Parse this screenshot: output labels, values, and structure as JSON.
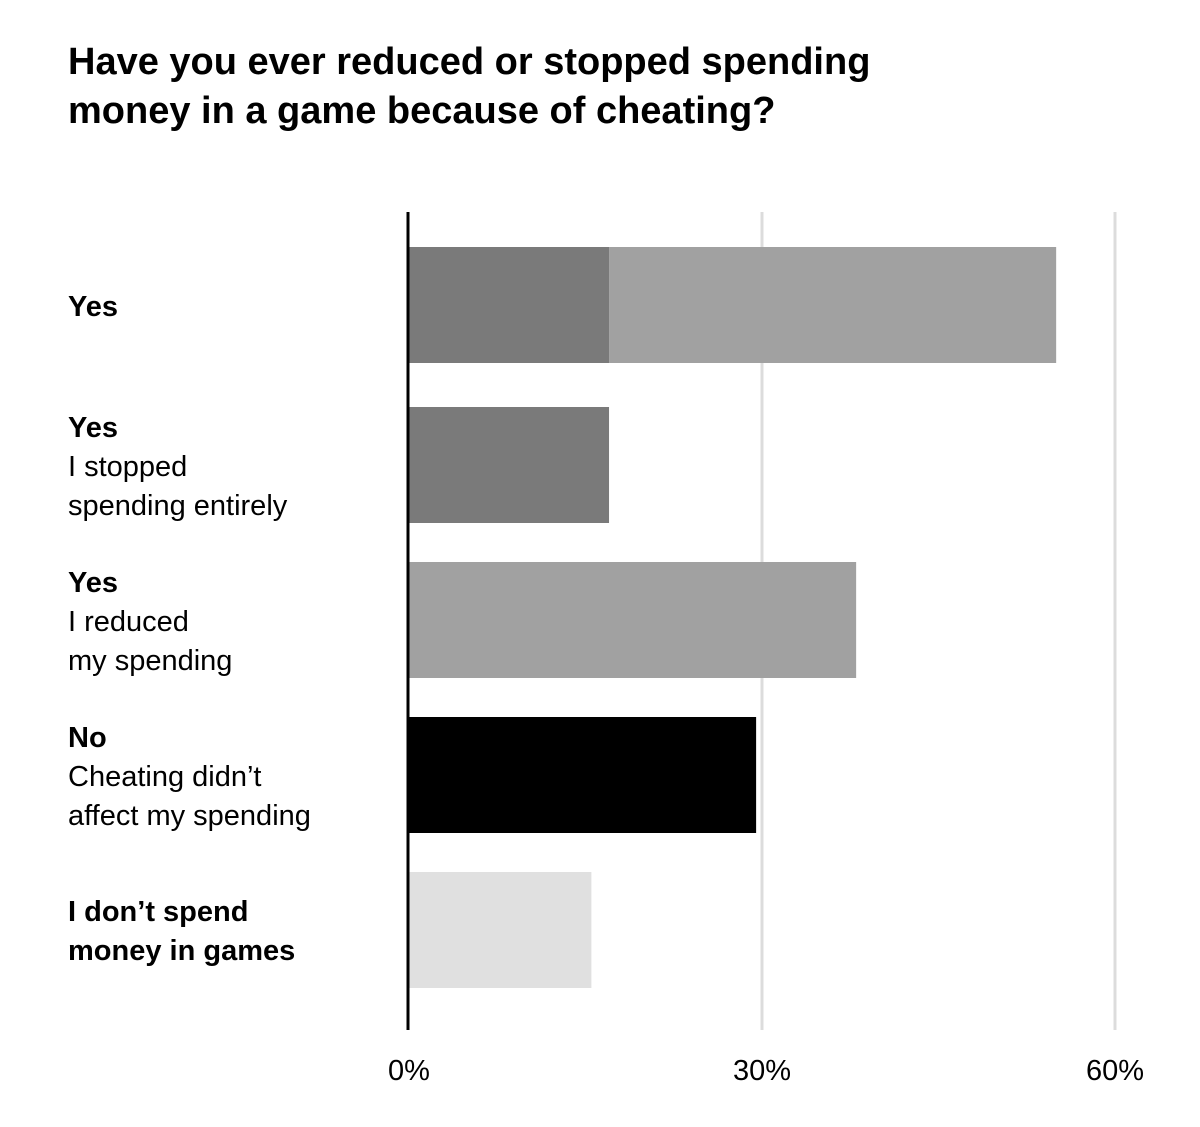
{
  "chart_data": {
    "type": "bar",
    "orientation": "horizontal",
    "title_lines": [
      "Have you ever reduced or stopped spending",
      "money in a game because of cheating?"
    ],
    "categories": [
      {
        "bold_lines": [
          "Yes"
        ],
        "sub_lines": [],
        "segments": [
          {
            "value": 17,
            "color": "#7a7a7a"
          },
          {
            "value": 38,
            "color": "#a1a1a1"
          }
        ]
      },
      {
        "bold_lines": [
          "Yes"
        ],
        "sub_lines": [
          "I stopped",
          "spending entirely"
        ],
        "segments": [
          {
            "value": 17,
            "color": "#7a7a7a"
          }
        ]
      },
      {
        "bold_lines": [
          "Yes"
        ],
        "sub_lines": [
          "I reduced",
          "my spending"
        ],
        "segments": [
          {
            "value": 38,
            "color": "#a1a1a1"
          }
        ]
      },
      {
        "bold_lines": [
          "No"
        ],
        "sub_lines": [
          "Cheating didn’t",
          "affect my spending"
        ],
        "segments": [
          {
            "value": 29.5,
            "color": "#000000"
          }
        ]
      },
      {
        "bold_lines": [
          "I don’t spend",
          "money in games"
        ],
        "sub_lines": [],
        "segments": [
          {
            "value": 15.5,
            "color": "#e0e0e0"
          }
        ]
      }
    ],
    "xlim": [
      0,
      60
    ],
    "xticks": [
      0,
      30,
      60
    ],
    "xtick_labels": [
      "0%",
      "30%",
      "60%"
    ],
    "grid": true,
    "legend": "none"
  }
}
